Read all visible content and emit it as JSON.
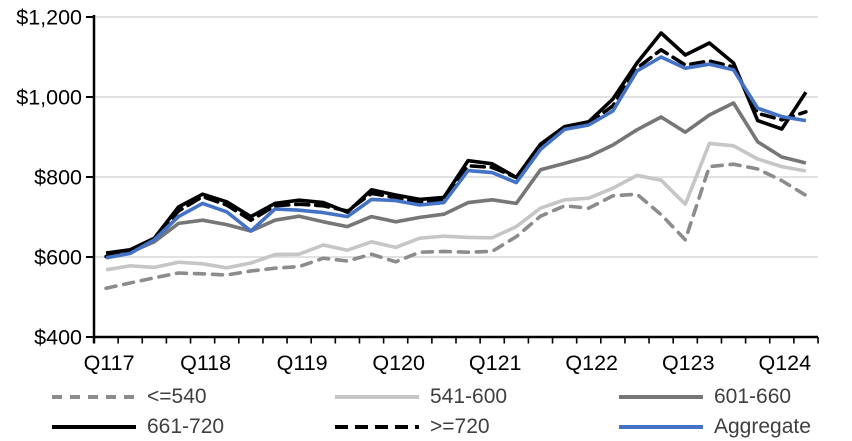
{
  "chart_data": {
    "type": "line",
    "title": "",
    "xlabel": "",
    "ylabel": "",
    "x_tick_labels": [
      "Q117",
      "Q118",
      "Q119",
      "Q120",
      "Q121",
      "Q122",
      "Q123",
      "Q124"
    ],
    "x_points_per_label": 4,
    "n_points": 30,
    "y_axis": {
      "min": 400,
      "max": 1200,
      "tick_values": [
        400,
        600,
        800,
        1000,
        1200
      ],
      "tick_labels": [
        "$400",
        "$600",
        "$800",
        "$1,000",
        "$1,200"
      ]
    },
    "grid": "horizontal",
    "gridline_color": "#d9d9d9",
    "axis_color": "#000000",
    "legend_position": "bottom",
    "series": [
      {
        "name": "<=540",
        "color": "#8c8c8c",
        "line_style": "dashed",
        "values": [
          522,
          535,
          548,
          560,
          558,
          555,
          565,
          572,
          576,
          597,
          590,
          607,
          588,
          612,
          614,
          612,
          614,
          651,
          702,
          728,
          722,
          753,
          757,
          706,
          643,
          826,
          832,
          820,
          791,
          754
        ]
      },
      {
        "name": "541-600",
        "color": "#c6c6c6",
        "line_style": "solid",
        "values": [
          568,
          578,
          574,
          587,
          583,
          573,
          585,
          606,
          607,
          630,
          617,
          638,
          624,
          647,
          652,
          649,
          648,
          676,
          722,
          743,
          747,
          772,
          804,
          792,
          732,
          884,
          878,
          845,
          826,
          815
        ]
      },
      {
        "name": "601-660",
        "color": "#767676",
        "line_style": "solid",
        "values": [
          605,
          612,
          638,
          684,
          692,
          681,
          665,
          692,
          702,
          688,
          676,
          701,
          688,
          699,
          707,
          736,
          743,
          734,
          818,
          834,
          851,
          880,
          918,
          950,
          912,
          955,
          985,
          888,
          850,
          835
        ]
      },
      {
        "name": "661-720",
        "color": "#000000",
        "line_style": "solid",
        "values": [
          610,
          618,
          647,
          725,
          757,
          738,
          701,
          734,
          742,
          736,
          712,
          768,
          755,
          744,
          749,
          841,
          833,
          799,
          882,
          926,
          938,
          995,
          1085,
          1160,
          1105,
          1135,
          1085,
          941,
          920,
          1012
        ]
      },
      {
        "name": ">=720",
        "color": "#000000",
        "line_style": "dashed",
        "values": [
          601,
          612,
          645,
          715,
          751,
          730,
          692,
          728,
          732,
          728,
          715,
          759,
          749,
          738,
          744,
          828,
          824,
          799,
          874,
          922,
          934,
          978,
          1072,
          1118,
          1080,
          1090,
          1075,
          959,
          943,
          963
        ]
      },
      {
        "name": "Aggregate",
        "color": "#4472c4",
        "line_style": "solid",
        "values": [
          598,
          609,
          643,
          701,
          734,
          713,
          665,
          720,
          717,
          711,
          701,
          744,
          741,
          730,
          736,
          816,
          811,
          786,
          869,
          919,
          930,
          965,
          1065,
          1100,
          1072,
          1082,
          1068,
          972,
          951,
          941
        ]
      }
    ]
  }
}
